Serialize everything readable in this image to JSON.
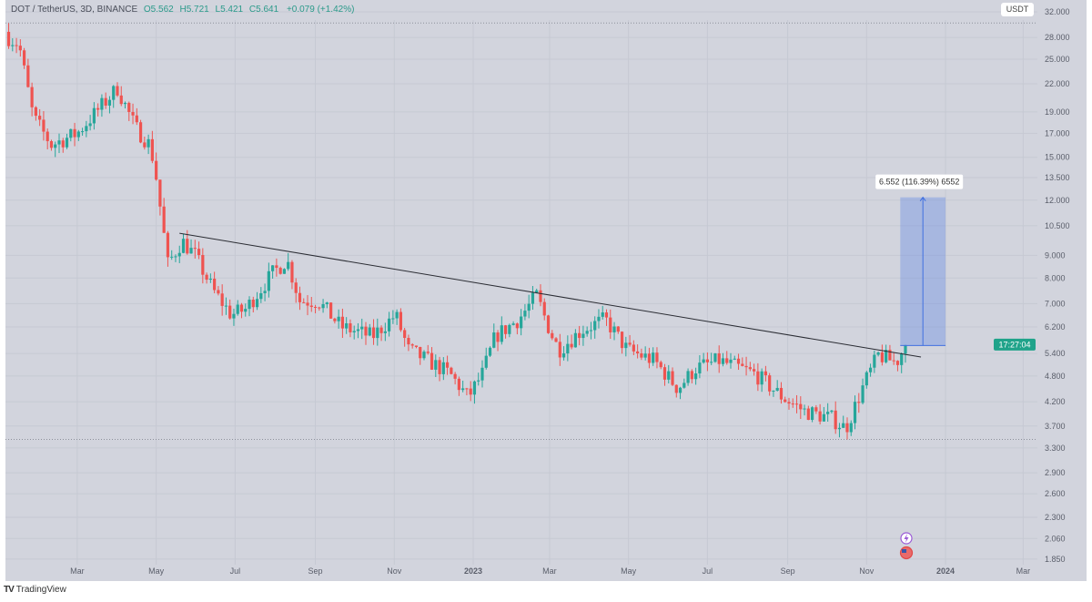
{
  "header": {
    "symbol": "DOT / TetherUS, 3D, BINANCE",
    "open": "O5.562",
    "high": "H5.721",
    "low": "L5.421",
    "close": "C5.641",
    "change": "+0.079 (+1.42%)"
  },
  "currency_button": "USDT",
  "countdown": "17:27:04",
  "brand": "TradingView",
  "colors": {
    "up": "#26a69a",
    "down": "#ef5350",
    "measure": "#3f6fe0",
    "countdown": "#1fa38a"
  },
  "chart_data": {
    "type": "candlestick",
    "interval": "3D",
    "scale": "log",
    "ylim": [
      1.8,
      34
    ],
    "y_ticks": [
      32,
      28,
      25,
      22,
      19,
      17,
      15,
      13.5,
      12,
      10.5,
      9,
      8,
      7,
      6.2,
      5.4,
      4.8,
      4.2,
      3.7,
      3.3,
      2.9,
      2.6,
      2.3,
      2.06,
      1.85
    ],
    "y_tick_labels": [
      "32.000",
      "28.000",
      "25.000",
      "22.000",
      "19.000",
      "17.000",
      "15.000",
      "13.500",
      "12.000",
      "10.500",
      "9.000",
      "8.000",
      "7.000",
      "6.200",
      "5.400",
      "4.800",
      "4.200",
      "3.700",
      "3.300",
      "2.900",
      "2.600",
      "2.300",
      "2.060",
      "1.850"
    ],
    "x_ticks": [
      {
        "date": "2022-03-01",
        "label": "Mar"
      },
      {
        "date": "2022-05-01",
        "label": "May"
      },
      {
        "date": "2022-07-01",
        "label": "Jul"
      },
      {
        "date": "2022-09-01",
        "label": "Sep"
      },
      {
        "date": "2022-11-01",
        "label": "Nov"
      },
      {
        "date": "2023-01-01",
        "label": "2023"
      },
      {
        "date": "2023-03-01",
        "label": "Mar"
      },
      {
        "date": "2023-05-01",
        "label": "May"
      },
      {
        "date": "2023-07-01",
        "label": "Jul"
      },
      {
        "date": "2023-09-01",
        "label": "Sep"
      },
      {
        "date": "2023-11-01",
        "label": "Nov"
      },
      {
        "date": "2024-01-01",
        "label": "2024"
      },
      {
        "date": "2024-03-01",
        "label": "Mar"
      }
    ],
    "price_path": [
      [
        "2022-01-07",
        28
      ],
      [
        "2022-01-15",
        27
      ],
      [
        "2022-01-26",
        18.5
      ],
      [
        "2022-02-09",
        16
      ],
      [
        "2022-03-01",
        17
      ],
      [
        "2022-04-01",
        21.5
      ],
      [
        "2022-04-15",
        17.5
      ],
      [
        "2022-04-26",
        16
      ],
      [
        "2022-04-30",
        14.2
      ],
      [
        "2022-05-10",
        8.6
      ],
      [
        "2022-05-21",
        9.7
      ],
      [
        "2022-05-31",
        9
      ],
      [
        "2022-06-14",
        7.5
      ],
      [
        "2022-06-28",
        6.6
      ],
      [
        "2022-07-09",
        6.8
      ],
      [
        "2022-07-30",
        8.2
      ],
      [
        "2022-08-10",
        8.8
      ],
      [
        "2022-08-20",
        7.1
      ],
      [
        "2022-09-03",
        7.1
      ],
      [
        "2022-09-21",
        6.2
      ],
      [
        "2022-10-15",
        5.9
      ],
      [
        "2022-11-02",
        6.6
      ],
      [
        "2022-11-12",
        5.5
      ],
      [
        "2022-11-27",
        5.2
      ],
      [
        "2022-12-14",
        4.85
      ],
      [
        "2022-12-28",
        4.3
      ],
      [
        "2023-01-08",
        4.85
      ],
      [
        "2023-01-18",
        5.9
      ],
      [
        "2023-02-05",
        6.45
      ],
      [
        "2023-02-19",
        7.3
      ],
      [
        "2023-03-01",
        6.1
      ],
      [
        "2023-03-08",
        5.5
      ],
      [
        "2023-03-26",
        6.1
      ],
      [
        "2023-04-13",
        6.45
      ],
      [
        "2023-04-30",
        5.5
      ],
      [
        "2023-05-21",
        5.2
      ],
      [
        "2023-06-08",
        4.5
      ],
      [
        "2023-06-22",
        5.0
      ],
      [
        "2023-07-10",
        5.2
      ],
      [
        "2023-08-07",
        4.85
      ],
      [
        "2023-08-28",
        4.3
      ],
      [
        "2023-09-14",
        4.0
      ],
      [
        "2023-10-05",
        3.85
      ],
      [
        "2023-10-16",
        3.65
      ],
      [
        "2023-10-30",
        4.6
      ],
      [
        "2023-11-10",
        5.35
      ],
      [
        "2023-11-24",
        5.15
      ],
      [
        "2023-12-01",
        5.641
      ]
    ],
    "trendline": [
      [
        "2022-05-19",
        10.1
      ],
      [
        "2023-12-13",
        5.3
      ]
    ],
    "measure": {
      "from_date": "2023-11-27",
      "to_date": "2024-01-01",
      "from_price": 5.63,
      "to_price": 12.18,
      "label": "6.552 (116.39%) 6552"
    },
    "dotted_levels": [
      30.2,
      3.45
    ]
  }
}
